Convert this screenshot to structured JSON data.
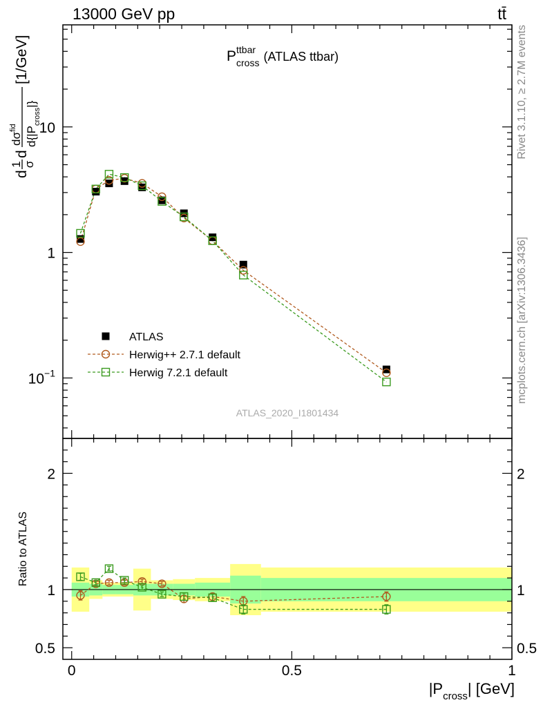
{
  "header": {
    "left": "13000 GeV pp",
    "right": "tt̄"
  },
  "side_texts": {
    "rivet": "Rivet 3.1.10, ≥ 2.7M events",
    "mcplots": "mcplots.cern.ch [arXiv:1306.3436]"
  },
  "colors": {
    "atlas": "#000000",
    "herwigpp": "#b05a1e",
    "herwig7": "#3a9a1e",
    "band_inner": "#99ff99",
    "band_outer": "#ffff88",
    "side_text": "#888888"
  },
  "chart_data": [
    {
      "type": "scatter",
      "title": {
        "main": "P",
        "sup": "ttbar",
        "sub": "cross",
        "suffix": "(ATLAS ttbar)"
      },
      "ylabel": {
        "prefix": "d",
        "frac1_num": "1",
        "frac1_den": "σ",
        "mid": "d",
        "frac2_num": "dσ",
        "frac2_num_sup": "fid",
        "frac2_den": "d{|P",
        "frac2_den_sub": "cross",
        "frac2_den_end": "|}",
        "unit": "[1/GeV]"
      },
      "yscale": "log",
      "ylim": [
        0.033,
        65
      ],
      "xlim": [
        -0.02,
        1.0
      ],
      "yticks": [
        {
          "value": 0.1,
          "base": "10",
          "exp": "−1"
        },
        {
          "value": 1,
          "base": "1",
          "exp": ""
        },
        {
          "value": 10,
          "base": "10",
          "exp": ""
        }
      ],
      "watermark": "ATLAS_2020_I1801434",
      "legend_position": "bottom-left",
      "x": [
        0.02,
        0.055,
        0.085,
        0.12,
        0.16,
        0.205,
        0.255,
        0.32,
        0.39,
        0.715
      ],
      "series": [
        {
          "name": "ATLAS",
          "marker": "filled-square",
          "values": [
            1.28,
            3.05,
            3.55,
            3.7,
            3.3,
            2.6,
            2.05,
            1.32,
            0.8,
            0.117
          ]
        },
        {
          "name": "Herwig++ 2.7.1 default",
          "marker": "open-circle",
          "values": [
            1.22,
            3.2,
            3.75,
            3.9,
            3.55,
            2.78,
            1.88,
            1.24,
            0.72,
            0.11
          ]
        },
        {
          "name": "Herwig 7.2.1 default",
          "marker": "open-square",
          "values": [
            1.42,
            3.2,
            4.2,
            3.95,
            3.4,
            2.55,
            1.92,
            1.24,
            0.66,
            0.093
          ]
        }
      ]
    },
    {
      "type": "scatter",
      "ylabel": "Ratio to ATLAS",
      "xlabel": {
        "main": "|P",
        "sub": "cross",
        "end": "| [GeV]"
      },
      "yscale": "linear",
      "ylim": [
        0.4,
        2.3
      ],
      "xlim": [
        -0.02,
        1.0
      ],
      "xticks": [
        {
          "value": 0,
          "label": "0"
        },
        {
          "value": 0.5,
          "label": "0.5"
        },
        {
          "value": 1,
          "label": "1"
        }
      ],
      "yticks": [
        {
          "value": 0.5,
          "label": "0.5"
        },
        {
          "value": 1,
          "label": "1"
        },
        {
          "value": 2,
          "label": "2"
        }
      ],
      "band_edges": [
        0.0,
        0.04,
        0.07,
        0.1,
        0.14,
        0.18,
        0.23,
        0.28,
        0.36,
        0.43,
        1.0
      ],
      "band_inner": [
        0.06,
        0.05,
        0.04,
        0.04,
        0.05,
        0.05,
        0.05,
        0.06,
        0.12,
        0.1
      ],
      "band_outer": [
        0.19,
        0.08,
        0.06,
        0.06,
        0.18,
        0.08,
        0.09,
        0.1,
        0.22,
        0.19
      ],
      "x": [
        0.02,
        0.055,
        0.085,
        0.12,
        0.16,
        0.205,
        0.255,
        0.32,
        0.39,
        0.715
      ],
      "series": [
        {
          "name": "Herwig++ 2.7.1 default",
          "marker": "open-circle",
          "values": [
            0.95,
            1.05,
            1.06,
            1.06,
            1.07,
            1.05,
            0.92,
            0.94,
            0.9,
            0.94
          ],
          "errors": [
            0.04,
            0.02,
            0.02,
            0.02,
            0.02,
            0.02,
            0.03,
            0.03,
            0.04,
            0.04
          ]
        },
        {
          "name": "Herwig 7.2.1 default",
          "marker": "open-square",
          "values": [
            1.11,
            1.06,
            1.18,
            1.08,
            1.02,
            0.96,
            0.94,
            0.93,
            0.83,
            0.83
          ],
          "errors": [
            0.03,
            0.02,
            0.02,
            0.02,
            0.02,
            0.02,
            0.03,
            0.03,
            0.04,
            0.04
          ]
        }
      ]
    }
  ]
}
